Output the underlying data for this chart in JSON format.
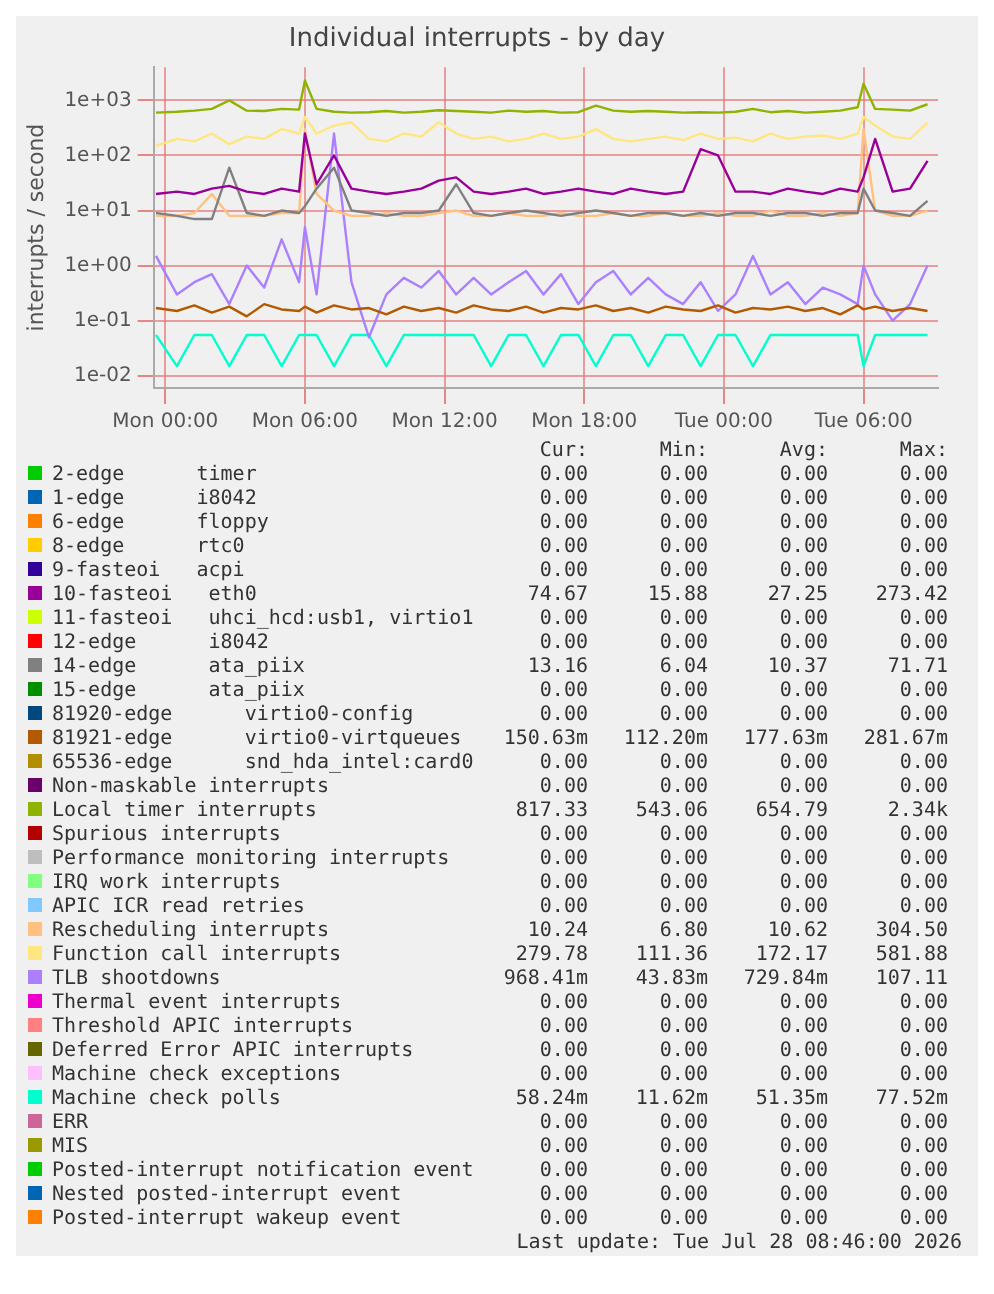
{
  "chart_data": {
    "type": "line",
    "title": "Individual interrupts - by day",
    "ylabel": "interrupts / second",
    "log": true,
    "grid": true,
    "legend": "bottom",
    "marker": "none",
    "line_style": "solid",
    "xlim": [
      "2026-07-26T23:30",
      "2026-07-28T09:12"
    ],
    "xticks": [
      {
        "value": "2026-07-27T00:00",
        "label": "Mon 00:00"
      },
      {
        "value": "2026-07-27T06:00",
        "label": "Mon 06:00"
      },
      {
        "value": "2026-07-27T12:00",
        "label": "Mon 12:00"
      },
      {
        "value": "2026-07-27T18:00",
        "label": "Mon 18:00"
      },
      {
        "value": "2026-07-28T00:00",
        "label": "Tue 00:00"
      },
      {
        "value": "2026-07-28T06:00",
        "label": "Tue 06:00"
      }
    ],
    "ylim": [
      0.006,
      4000
    ],
    "yticks": [
      {
        "value": 0.01,
        "label": "1e-02"
      },
      {
        "value": 0.1,
        "label": "1e-01"
      },
      {
        "value": 1,
        "label": "1e+00"
      },
      {
        "value": 10,
        "label": "1e+01"
      },
      {
        "value": 100,
        "label": "1e+02"
      },
      {
        "value": 1000,
        "label": "1e+03"
      }
    ],
    "x": [
      "2026-07-26T23:36",
      "2026-07-27T00:30",
      "2026-07-27T01:15",
      "2026-07-27T02:00",
      "2026-07-27T02:45",
      "2026-07-27T03:30",
      "2026-07-27T04:15",
      "2026-07-27T05:00",
      "2026-07-27T05:45",
      "2026-07-27T06:00",
      "2026-07-27T06:30",
      "2026-07-27T07:15",
      "2026-07-27T08:00",
      "2026-07-27T08:45",
      "2026-07-27T09:30",
      "2026-07-27T10:15",
      "2026-07-27T11:00",
      "2026-07-27T11:45",
      "2026-07-27T12:30",
      "2026-07-27T13:15",
      "2026-07-27T14:00",
      "2026-07-27T14:45",
      "2026-07-27T15:30",
      "2026-07-27T16:15",
      "2026-07-27T17:00",
      "2026-07-27T17:45",
      "2026-07-27T18:30",
      "2026-07-27T19:15",
      "2026-07-27T20:00",
      "2026-07-27T20:45",
      "2026-07-27T21:30",
      "2026-07-27T22:15",
      "2026-07-27T23:00",
      "2026-07-27T23:45",
      "2026-07-28T00:30",
      "2026-07-28T01:15",
      "2026-07-28T02:00",
      "2026-07-28T02:45",
      "2026-07-28T03:30",
      "2026-07-28T04:15",
      "2026-07-28T05:00",
      "2026-07-28T05:45",
      "2026-07-28T06:00",
      "2026-07-28T06:30",
      "2026-07-28T07:15",
      "2026-07-28T08:00",
      "2026-07-28T08:45"
    ],
    "series": [
      {
        "name": "2-edge      timer",
        "color": "#00cc00",
        "values": [
          null,
          null,
          null,
          null,
          null,
          null,
          null,
          null,
          null,
          null,
          null,
          null,
          null,
          null,
          null,
          null,
          null,
          null,
          null,
          null,
          null,
          null,
          null,
          null,
          null,
          null,
          null,
          null,
          null,
          null,
          null,
          null,
          null,
          null,
          null,
          null,
          null,
          null,
          null,
          null,
          null,
          null,
          null,
          null,
          null,
          null,
          null
        ]
      },
      {
        "name": "1-edge      i8042",
        "color": "#0066b3",
        "values": [
          null,
          null,
          null,
          null,
          null,
          null,
          null,
          null,
          null,
          null,
          null,
          null,
          null,
          null,
          null,
          null,
          null,
          null,
          null,
          null,
          null,
          null,
          null,
          null,
          null,
          null,
          null,
          null,
          null,
          null,
          null,
          null,
          null,
          null,
          null,
          null,
          null,
          null,
          null,
          null,
          null,
          null,
          null,
          null,
          null,
          null,
          null
        ]
      },
      {
        "name": "6-edge      floppy",
        "color": "#ff8000",
        "values": [
          null,
          null,
          null,
          null,
          null,
          null,
          null,
          null,
          null,
          null,
          null,
          null,
          null,
          null,
          null,
          null,
          null,
          null,
          null,
          null,
          null,
          null,
          null,
          null,
          null,
          null,
          null,
          null,
          null,
          null,
          null,
          null,
          null,
          null,
          null,
          null,
          null,
          null,
          null,
          null,
          null,
          null,
          null,
          null,
          null,
          null,
          null
        ]
      },
      {
        "name": "8-edge      rtc0",
        "color": "#ffcc00",
        "values": [
          null,
          null,
          null,
          null,
          null,
          null,
          null,
          null,
          null,
          null,
          null,
          null,
          null,
          null,
          null,
          null,
          null,
          null,
          null,
          null,
          null,
          null,
          null,
          null,
          null,
          null,
          null,
          null,
          null,
          null,
          null,
          null,
          null,
          null,
          null,
          null,
          null,
          null,
          null,
          null,
          null,
          null,
          null,
          null,
          null,
          null,
          null
        ]
      },
      {
        "name": "9-fasteoi   acpi",
        "color": "#330099",
        "values": [
          null,
          null,
          null,
          null,
          null,
          null,
          null,
          null,
          null,
          null,
          null,
          null,
          null,
          null,
          null,
          null,
          null,
          null,
          null,
          null,
          null,
          null,
          null,
          null,
          null,
          null,
          null,
          null,
          null,
          null,
          null,
          null,
          null,
          null,
          null,
          null,
          null,
          null,
          null,
          null,
          null,
          null,
          null,
          null,
          null,
          null,
          null
        ]
      },
      {
        "name": "10-fasteoi   eth0",
        "color": "#990099",
        "values": [
          20,
          22,
          20,
          25,
          28,
          22,
          20,
          25,
          22,
          250,
          30,
          100,
          25,
          22,
          20,
          22,
          25,
          35,
          40,
          22,
          20,
          22,
          25,
          20,
          22,
          25,
          22,
          20,
          25,
          22,
          20,
          22,
          130,
          100,
          22,
          22,
          20,
          25,
          22,
          20,
          25,
          22,
          40,
          200,
          22,
          25,
          80
        ]
      },
      {
        "name": "11-fasteoi   uhci_hcd:usb1, virtio1",
        "color": "#ccff00",
        "values": [
          null,
          null,
          null,
          null,
          null,
          null,
          null,
          null,
          null,
          null,
          null,
          null,
          null,
          null,
          null,
          null,
          null,
          null,
          null,
          null,
          null,
          null,
          null,
          null,
          null,
          null,
          null,
          null,
          null,
          null,
          null,
          null,
          null,
          null,
          null,
          null,
          null,
          null,
          null,
          null,
          null,
          null,
          null,
          null,
          null,
          null,
          null
        ]
      },
      {
        "name": "12-edge      i8042",
        "color": "#ff0000",
        "values": [
          null,
          null,
          null,
          null,
          null,
          null,
          null,
          null,
          null,
          null,
          null,
          null,
          null,
          null,
          null,
          null,
          null,
          null,
          null,
          null,
          null,
          null,
          null,
          null,
          null,
          null,
          null,
          null,
          null,
          null,
          null,
          null,
          null,
          null,
          null,
          null,
          null,
          null,
          null,
          null,
          null,
          null,
          null,
          null,
          null,
          null,
          null
        ]
      },
      {
        "name": "14-edge      ata_piix",
        "color": "#808080",
        "values": [
          9,
          8,
          7,
          7,
          60,
          9,
          8,
          10,
          9,
          12,
          25,
          60,
          10,
          9,
          8,
          9,
          9,
          10,
          30,
          9,
          8,
          9,
          10,
          9,
          8,
          9,
          10,
          9,
          8,
          9,
          9,
          8,
          9,
          8,
          9,
          9,
          8,
          9,
          9,
          8,
          9,
          9,
          25,
          10,
          9,
          8,
          15
        ]
      },
      {
        "name": "15-edge      ata_piix",
        "color": "#008f00",
        "values": [
          null,
          null,
          null,
          null,
          null,
          null,
          null,
          null,
          null,
          null,
          null,
          null,
          null,
          null,
          null,
          null,
          null,
          null,
          null,
          null,
          null,
          null,
          null,
          null,
          null,
          null,
          null,
          null,
          null,
          null,
          null,
          null,
          null,
          null,
          null,
          null,
          null,
          null,
          null,
          null,
          null,
          null,
          null,
          null,
          null,
          null,
          null
        ]
      },
      {
        "name": "81920-edge      virtio0-config",
        "color": "#00487d",
        "values": [
          null,
          null,
          null,
          null,
          null,
          null,
          null,
          null,
          null,
          null,
          null,
          null,
          null,
          null,
          null,
          null,
          null,
          null,
          null,
          null,
          null,
          null,
          null,
          null,
          null,
          null,
          null,
          null,
          null,
          null,
          null,
          null,
          null,
          null,
          null,
          null,
          null,
          null,
          null,
          null,
          null,
          null,
          null,
          null,
          null,
          null,
          null
        ]
      },
      {
        "name": "81921-edge      virtio0-virtqueues",
        "color": "#b35a00",
        "values": [
          0.17,
          0.15,
          0.19,
          0.14,
          0.18,
          0.12,
          0.2,
          0.16,
          0.15,
          0.18,
          0.14,
          0.19,
          0.16,
          0.17,
          0.13,
          0.18,
          0.15,
          0.17,
          0.14,
          0.19,
          0.16,
          0.15,
          0.18,
          0.14,
          0.17,
          0.16,
          0.19,
          0.15,
          0.17,
          0.14,
          0.18,
          0.16,
          0.15,
          0.19,
          0.14,
          0.17,
          0.16,
          0.18,
          0.15,
          0.17,
          0.13,
          0.19,
          0.16,
          0.18,
          0.15,
          0.17,
          0.15
        ]
      },
      {
        "name": "65536-edge      snd_hda_intel:card0",
        "color": "#b38f00",
        "values": [
          null,
          null,
          null,
          null,
          null,
          null,
          null,
          null,
          null,
          null,
          null,
          null,
          null,
          null,
          null,
          null,
          null,
          null,
          null,
          null,
          null,
          null,
          null,
          null,
          null,
          null,
          null,
          null,
          null,
          null,
          null,
          null,
          null,
          null,
          null,
          null,
          null,
          null,
          null,
          null,
          null,
          null,
          null,
          null,
          null,
          null,
          null
        ]
      },
      {
        "name": "Non-maskable interrupts",
        "color": "#6b006b",
        "values": [
          null,
          null,
          null,
          null,
          null,
          null,
          null,
          null,
          null,
          null,
          null,
          null,
          null,
          null,
          null,
          null,
          null,
          null,
          null,
          null,
          null,
          null,
          null,
          null,
          null,
          null,
          null,
          null,
          null,
          null,
          null,
          null,
          null,
          null,
          null,
          null,
          null,
          null,
          null,
          null,
          null,
          null,
          null,
          null,
          null,
          null,
          null
        ]
      },
      {
        "name": "Local timer interrupts",
        "color": "#8fb300",
        "values": [
          600,
          620,
          650,
          700,
          1000,
          650,
          640,
          700,
          680,
          2300,
          700,
          620,
          600,
          610,
          640,
          600,
          620,
          660,
          640,
          620,
          600,
          650,
          620,
          640,
          600,
          610,
          800,
          650,
          620,
          640,
          620,
          600,
          610,
          600,
          620,
          700,
          610,
          640,
          600,
          620,
          650,
          750,
          2000,
          700,
          680,
          650,
          850
        ]
      },
      {
        "name": "Spurious interrupts",
        "color": "#b30000",
        "values": [
          null,
          null,
          null,
          null,
          null,
          null,
          null,
          null,
          null,
          null,
          null,
          null,
          null,
          null,
          null,
          null,
          null,
          null,
          null,
          null,
          null,
          null,
          null,
          null,
          null,
          null,
          null,
          null,
          null,
          null,
          null,
          null,
          null,
          null,
          null,
          null,
          null,
          null,
          null,
          null,
          null,
          null,
          null,
          null,
          null,
          null,
          null
        ]
      },
      {
        "name": "Performance monitoring interrupts",
        "color": "#bebebe",
        "values": [
          null,
          null,
          null,
          null,
          null,
          null,
          null,
          null,
          null,
          null,
          null,
          null,
          null,
          null,
          null,
          null,
          null,
          null,
          null,
          null,
          null,
          null,
          null,
          null,
          null,
          null,
          null,
          null,
          null,
          null,
          null,
          null,
          null,
          null,
          null,
          null,
          null,
          null,
          null,
          null,
          null,
          null,
          null,
          null,
          null,
          null,
          null
        ]
      },
      {
        "name": "IRQ work interrupts",
        "color": "#80ff80",
        "values": [
          null,
          null,
          null,
          null,
          null,
          null,
          null,
          null,
          null,
          null,
          null,
          null,
          null,
          null,
          null,
          null,
          null,
          null,
          null,
          null,
          null,
          null,
          null,
          null,
          null,
          null,
          null,
          null,
          null,
          null,
          null,
          null,
          null,
          null,
          null,
          null,
          null,
          null,
          null,
          null,
          null,
          null,
          null,
          null,
          null,
          null,
          null
        ]
      },
      {
        "name": "APIC ICR read retries",
        "color": "#80c9ff",
        "values": [
          null,
          null,
          null,
          null,
          null,
          null,
          null,
          null,
          null,
          null,
          null,
          null,
          null,
          null,
          null,
          null,
          null,
          null,
          null,
          null,
          null,
          null,
          null,
          null,
          null,
          null,
          null,
          null,
          null,
          null,
          null,
          null,
          null,
          null,
          null,
          null,
          null,
          null,
          null,
          null,
          null,
          null,
          null,
          null,
          null,
          null,
          null
        ]
      },
      {
        "name": "Rescheduling interrupts",
        "color": "#ffc080",
        "values": [
          8,
          8,
          9,
          20,
          8,
          8,
          8,
          9,
          9,
          300,
          20,
          10,
          8,
          8,
          9,
          8,
          8,
          9,
          10,
          8,
          8,
          9,
          8,
          8,
          9,
          8,
          8,
          9,
          8,
          8,
          9,
          8,
          8,
          9,
          8,
          8,
          10,
          8,
          8,
          9,
          8,
          9,
          300,
          10,
          8,
          8,
          10
        ]
      },
      {
        "name": "Function call interrupts",
        "color": "#ffe680",
        "values": [
          150,
          200,
          180,
          250,
          160,
          220,
          200,
          300,
          250,
          500,
          250,
          350,
          400,
          200,
          180,
          250,
          220,
          400,
          250,
          200,
          220,
          180,
          200,
          250,
          200,
          220,
          300,
          200,
          180,
          200,
          220,
          190,
          250,
          200,
          210,
          180,
          250,
          200,
          220,
          230,
          200,
          250,
          500,
          350,
          220,
          200,
          400
        ]
      },
      {
        "name": "TLB shootdowns",
        "color": "#aa80ff",
        "values": [
          1.5,
          0.3,
          0.5,
          0.7,
          0.2,
          1,
          0.4,
          3,
          0.5,
          5,
          0.3,
          250,
          0.5,
          0.05,
          0.3,
          0.6,
          0.4,
          0.8,
          0.3,
          0.6,
          0.3,
          0.5,
          0.8,
          0.3,
          0.7,
          0.2,
          0.5,
          0.8,
          0.3,
          0.6,
          0.3,
          0.2,
          0.5,
          0.15,
          0.3,
          1.5,
          0.3,
          0.5,
          0.2,
          0.4,
          0.3,
          0.2,
          1,
          0.3,
          0.1,
          0.2,
          1
        ]
      },
      {
        "name": "Thermal event interrupts",
        "color": "#ee00cc",
        "values": [
          null,
          null,
          null,
          null,
          null,
          null,
          null,
          null,
          null,
          null,
          null,
          null,
          null,
          null,
          null,
          null,
          null,
          null,
          null,
          null,
          null,
          null,
          null,
          null,
          null,
          null,
          null,
          null,
          null,
          null,
          null,
          null,
          null,
          null,
          null,
          null,
          null,
          null,
          null,
          null,
          null,
          null,
          null,
          null,
          null,
          null,
          null
        ]
      },
      {
        "name": "Threshold APIC interrupts",
        "color": "#ff8080",
        "values": [
          null,
          null,
          null,
          null,
          null,
          null,
          null,
          null,
          null,
          null,
          null,
          null,
          null,
          null,
          null,
          null,
          null,
          null,
          null,
          null,
          null,
          null,
          null,
          null,
          null,
          null,
          null,
          null,
          null,
          null,
          null,
          null,
          null,
          null,
          null,
          null,
          null,
          null,
          null,
          null,
          null,
          null,
          null,
          null,
          null,
          null,
          null
        ]
      },
      {
        "name": "Deferred Error APIC interrupts",
        "color": "#666600",
        "values": [
          null,
          null,
          null,
          null,
          null,
          null,
          null,
          null,
          null,
          null,
          null,
          null,
          null,
          null,
          null,
          null,
          null,
          null,
          null,
          null,
          null,
          null,
          null,
          null,
          null,
          null,
          null,
          null,
          null,
          null,
          null,
          null,
          null,
          null,
          null,
          null,
          null,
          null,
          null,
          null,
          null,
          null,
          null,
          null,
          null,
          null,
          null
        ]
      },
      {
        "name": "Machine check exceptions",
        "color": "#ffbfff",
        "values": [
          null,
          null,
          null,
          null,
          null,
          null,
          null,
          null,
          null,
          null,
          null,
          null,
          null,
          null,
          null,
          null,
          null,
          null,
          null,
          null,
          null,
          null,
          null,
          null,
          null,
          null,
          null,
          null,
          null,
          null,
          null,
          null,
          null,
          null,
          null,
          null,
          null,
          null,
          null,
          null,
          null,
          null,
          null,
          null,
          null,
          null,
          null
        ]
      },
      {
        "name": "Machine check polls",
        "color": "#00ffcc",
        "values": [
          0.055,
          0.015,
          0.055,
          0.055,
          0.015,
          0.055,
          0.055,
          0.015,
          0.055,
          0.055,
          0.055,
          0.015,
          0.055,
          0.055,
          0.015,
          0.055,
          0.055,
          0.055,
          0.055,
          0.055,
          0.015,
          0.055,
          0.055,
          0.015,
          0.055,
          0.055,
          0.015,
          0.055,
          0.055,
          0.015,
          0.055,
          0.055,
          0.015,
          0.055,
          0.055,
          0.015,
          0.055,
          0.055,
          0.055,
          0.055,
          0.055,
          0.055,
          0.015,
          0.055,
          0.055,
          0.055,
          0.055
        ]
      },
      {
        "name": "ERR",
        "color": "#cc6699",
        "values": [
          null,
          null,
          null,
          null,
          null,
          null,
          null,
          null,
          null,
          null,
          null,
          null,
          null,
          null,
          null,
          null,
          null,
          null,
          null,
          null,
          null,
          null,
          null,
          null,
          null,
          null,
          null,
          null,
          null,
          null,
          null,
          null,
          null,
          null,
          null,
          null,
          null,
          null,
          null,
          null,
          null,
          null,
          null,
          null,
          null,
          null,
          null
        ]
      },
      {
        "name": "MIS",
        "color": "#999900",
        "values": [
          null,
          null,
          null,
          null,
          null,
          null,
          null,
          null,
          null,
          null,
          null,
          null,
          null,
          null,
          null,
          null,
          null,
          null,
          null,
          null,
          null,
          null,
          null,
          null,
          null,
          null,
          null,
          null,
          null,
          null,
          null,
          null,
          null,
          null,
          null,
          null,
          null,
          null,
          null,
          null,
          null,
          null,
          null,
          null,
          null,
          null,
          null
        ]
      },
      {
        "name": "Posted-interrupt notification event",
        "color": "#00cc00",
        "values": [
          null,
          null,
          null,
          null,
          null,
          null,
          null,
          null,
          null,
          null,
          null,
          null,
          null,
          null,
          null,
          null,
          null,
          null,
          null,
          null,
          null,
          null,
          null,
          null,
          null,
          null,
          null,
          null,
          null,
          null,
          null,
          null,
          null,
          null,
          null,
          null,
          null,
          null,
          null,
          null,
          null,
          null,
          null,
          null,
          null,
          null,
          null
        ]
      },
      {
        "name": "Nested posted-interrupt event",
        "color": "#0066b3",
        "values": [
          null,
          null,
          null,
          null,
          null,
          null,
          null,
          null,
          null,
          null,
          null,
          null,
          null,
          null,
          null,
          null,
          null,
          null,
          null,
          null,
          null,
          null,
          null,
          null,
          null,
          null,
          null,
          null,
          null,
          null,
          null,
          null,
          null,
          null,
          null,
          null,
          null,
          null,
          null,
          null,
          null,
          null,
          null,
          null,
          null,
          null,
          null
        ]
      },
      {
        "name": "Posted-interrupt wakeup event",
        "color": "#ff8000",
        "values": [
          null,
          null,
          null,
          null,
          null,
          null,
          null,
          null,
          null,
          null,
          null,
          null,
          null,
          null,
          null,
          null,
          null,
          null,
          null,
          null,
          null,
          null,
          null,
          null,
          null,
          null,
          null,
          null,
          null,
          null,
          null,
          null,
          null,
          null,
          null,
          null,
          null,
          null,
          null,
          null,
          null,
          null,
          null,
          null,
          null,
          null,
          null
        ]
      }
    ],
    "annotations": [
      "Cur:",
      "Min:",
      "Avg:",
      "Max:",
      "0.00",
      "0.00",
      "0.00",
      "0.00",
      "0.00",
      "0.00",
      "0.00",
      "0.00",
      "0.00",
      "0.00",
      "0.00",
      "0.00",
      "0.00",
      "0.00",
      "0.00",
      "0.00",
      "0.00",
      "0.00",
      "0.00",
      "0.00",
      "74.67",
      "15.88",
      "27.25",
      "273.42",
      "0.00",
      "0.00",
      "0.00",
      "0.00",
      "0.00",
      "0.00",
      "0.00",
      "0.00",
      "13.16",
      "6.04",
      "10.37",
      "71.71",
      "0.00",
      "0.00",
      "0.00",
      "0.00",
      "0.00",
      "0.00",
      "0.00",
      "0.00",
      "150.63m",
      "112.20m",
      "177.63m",
      "281.67m",
      "0.00",
      "0.00",
      "0.00",
      "0.00",
      "0.00",
      "0.00",
      "0.00",
      "0.00",
      "817.33",
      "543.06",
      "654.79",
      "2.34k",
      "0.00",
      "0.00",
      "0.00",
      "0.00",
      "0.00",
      "0.00",
      "0.00",
      "0.00",
      "0.00",
      "0.00",
      "0.00",
      "0.00",
      "0.00",
      "0.00",
      "0.00",
      "0.00",
      "10.24",
      "6.80",
      "10.62",
      "304.50",
      "279.78",
      "111.36",
      "172.17",
      "581.88",
      "968.41m",
      "43.83m",
      "729.84m",
      "107.11",
      "0.00",
      "0.00",
      "0.00",
      "0.00",
      "0.00",
      "0.00",
      "0.00",
      "0.00",
      "0.00",
      "0.00",
      "0.00",
      "0.00",
      "0.00",
      "0.00",
      "0.00",
      "0.00",
      "58.24m",
      "11.62m",
      "51.35m",
      "77.52m",
      "0.00",
      "0.00",
      "0.00",
      "0.00",
      "0.00",
      "0.00",
      "0.00",
      "0.00",
      "0.00",
      "0.00",
      "0.00",
      "0.00",
      "0.00",
      "0.00",
      "0.00",
      "0.00",
      "0.00",
      "0.00",
      "0.00",
      "0.00",
      "Last update: Tue Jul 28 08:46:00 2026"
    ]
  }
}
